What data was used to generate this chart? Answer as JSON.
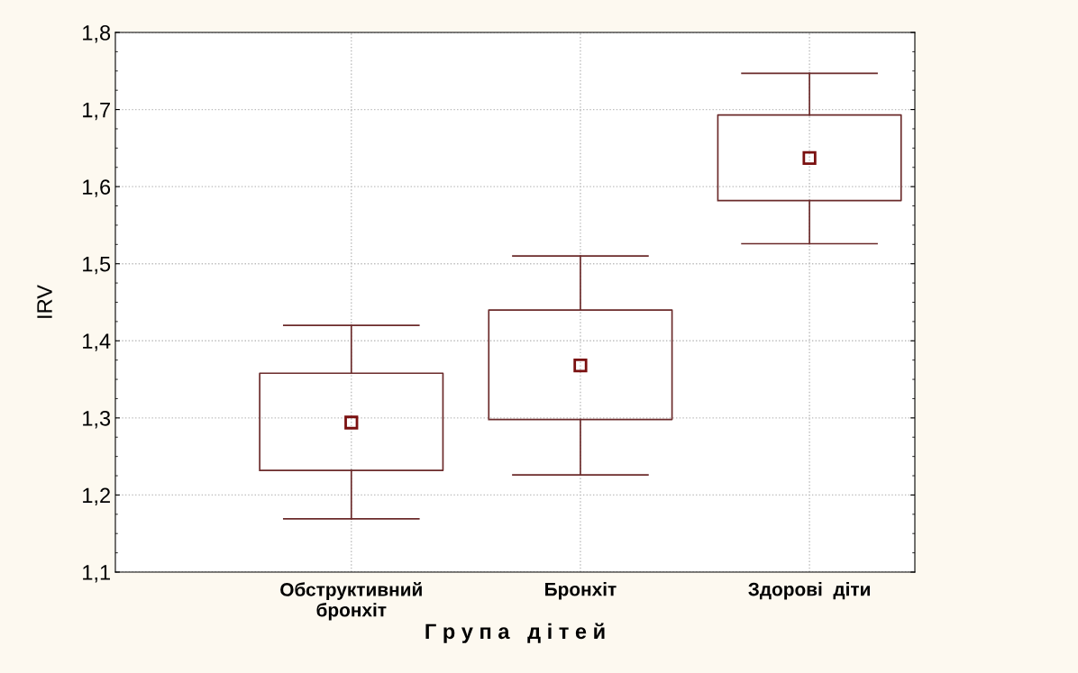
{
  "chart_data": {
    "type": "box",
    "xlabel": "Г р у п а   д і т е й",
    "ylabel": "IRV",
    "categories": [
      "Обструктивний\nбронхіт",
      "Бронхіт",
      "Здорові  діти"
    ],
    "boxes": [
      {
        "low": 1.169,
        "q1": 1.232,
        "median": 1.294,
        "q3": 1.358,
        "high": 1.42
      },
      {
        "low": 1.226,
        "q1": 1.298,
        "median": 1.368,
        "q3": 1.44,
        "high": 1.51
      },
      {
        "low": 1.526,
        "q1": 1.582,
        "median": 1.637,
        "q3": 1.693,
        "high": 1.747
      }
    ],
    "color": "#6b2a2a",
    "marker": "square",
    "ylim": [
      1.1,
      1.8
    ],
    "yticks": [
      {
        "value": 1.1,
        "label": "1,1"
      },
      {
        "value": 1.2,
        "label": "1,2"
      },
      {
        "value": 1.3,
        "label": "1,3"
      },
      {
        "value": 1.4,
        "label": "1,4"
      },
      {
        "value": 1.5,
        "label": "1,5"
      },
      {
        "value": 1.6,
        "label": "1,6"
      },
      {
        "value": 1.7,
        "label": "1,7"
      },
      {
        "value": 1.8,
        "label": "1,8"
      }
    ],
    "grid": true
  }
}
